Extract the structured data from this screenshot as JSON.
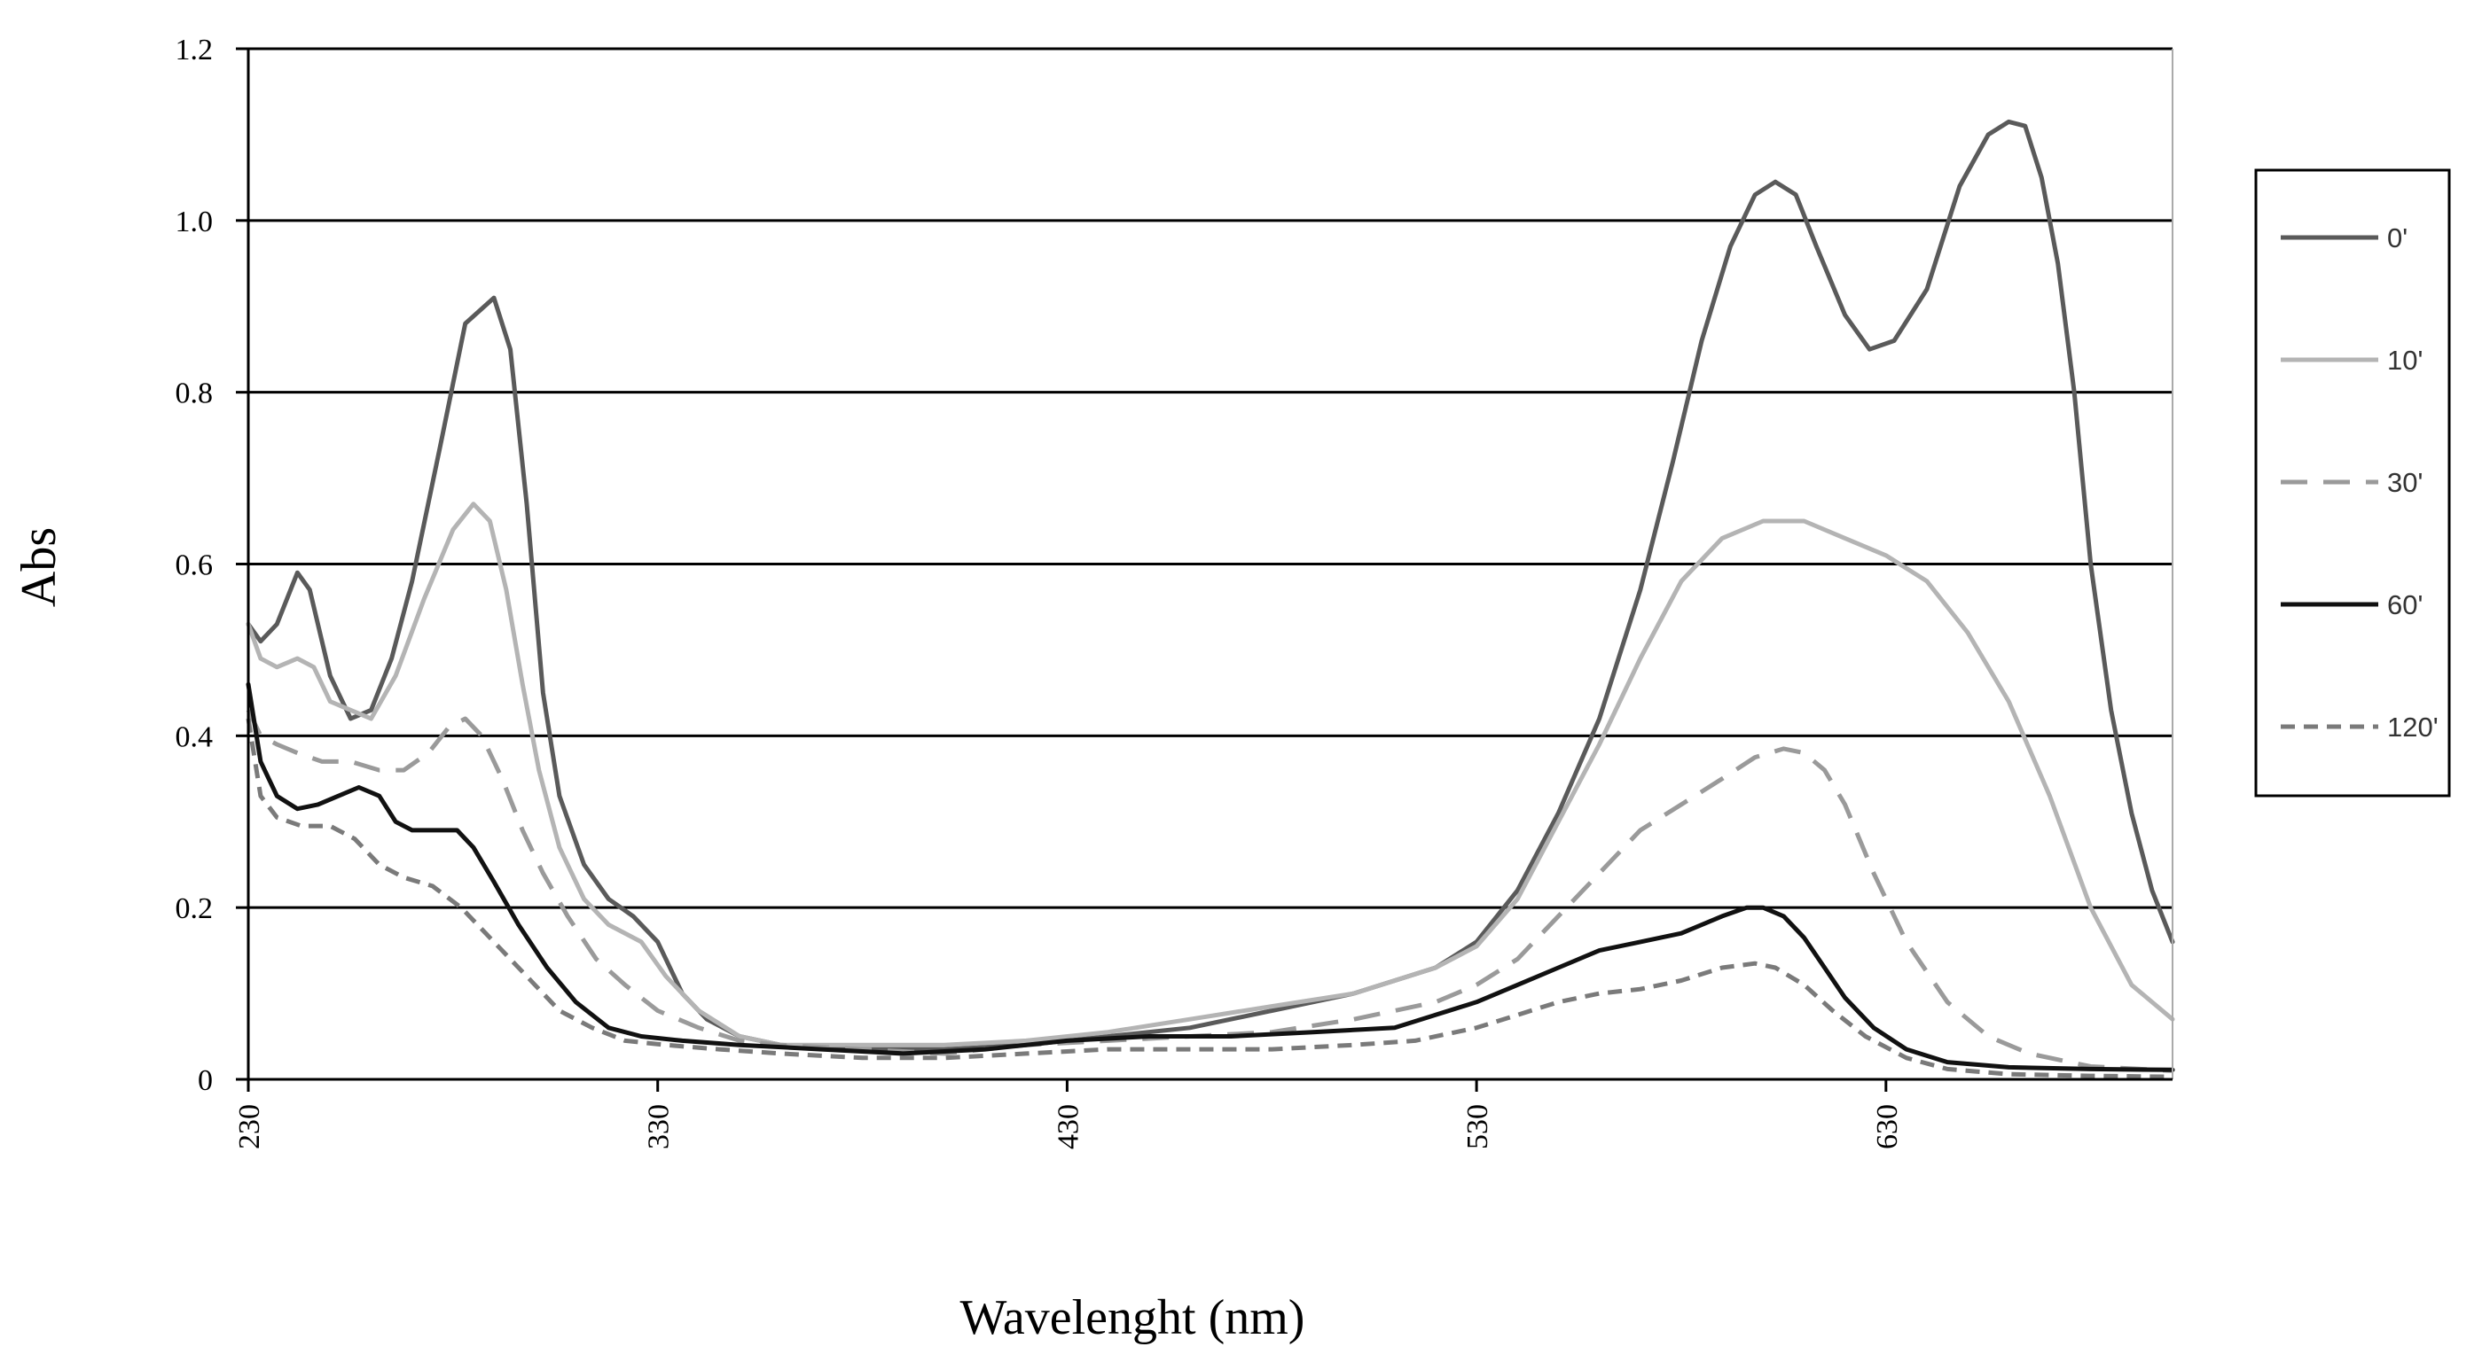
{
  "chart_data": {
    "type": "line",
    "title": "",
    "xlabel": "Wavelenght (nm)",
    "ylabel": "Abs",
    "xlim": [
      230,
      700
    ],
    "ylim": [
      0,
      1.2
    ],
    "x_ticks": [
      230,
      330,
      430,
      530,
      630
    ],
    "x_tick_labels": [
      "230",
      "330",
      "430",
      "530",
      "630"
    ],
    "y_ticks": [
      0,
      0.2,
      0.4,
      0.6,
      0.8,
      1.0,
      1.2
    ],
    "y_tick_labels": [
      "0",
      "0.2",
      "0.4",
      "0.6",
      "0.8",
      "1.0",
      "1.2"
    ],
    "grid": "horizontal",
    "legend_position": "right",
    "series": [
      {
        "name": "0'",
        "color": "#5a5a5a",
        "dash": "solid",
        "points": [
          [
            230,
            0.53
          ],
          [
            233,
            0.51
          ],
          [
            237,
            0.53
          ],
          [
            242,
            0.59
          ],
          [
            245,
            0.57
          ],
          [
            250,
            0.47
          ],
          [
            255,
            0.42
          ],
          [
            260,
            0.43
          ],
          [
            265,
            0.49
          ],
          [
            270,
            0.58
          ],
          [
            277,
            0.74
          ],
          [
            283,
            0.88
          ],
          [
            290,
            0.91
          ],
          [
            294,
            0.85
          ],
          [
            298,
            0.67
          ],
          [
            302,
            0.45
          ],
          [
            306,
            0.33
          ],
          [
            312,
            0.25
          ],
          [
            318,
            0.21
          ],
          [
            324,
            0.19
          ],
          [
            330,
            0.16
          ],
          [
            336,
            0.1
          ],
          [
            342,
            0.07
          ],
          [
            350,
            0.05
          ],
          [
            360,
            0.04
          ],
          [
            380,
            0.035
          ],
          [
            400,
            0.035
          ],
          [
            420,
            0.04
          ],
          [
            440,
            0.05
          ],
          [
            460,
            0.06
          ],
          [
            480,
            0.08
          ],
          [
            500,
            0.1
          ],
          [
            520,
            0.13
          ],
          [
            530,
            0.16
          ],
          [
            540,
            0.22
          ],
          [
            550,
            0.31
          ],
          [
            560,
            0.42
          ],
          [
            570,
            0.57
          ],
          [
            578,
            0.72
          ],
          [
            585,
            0.86
          ],
          [
            592,
            0.97
          ],
          [
            598,
            1.03
          ],
          [
            603,
            1.045
          ],
          [
            608,
            1.03
          ],
          [
            613,
            0.97
          ],
          [
            620,
            0.89
          ],
          [
            626,
            0.85
          ],
          [
            632,
            0.86
          ],
          [
            640,
            0.92
          ],
          [
            648,
            1.04
          ],
          [
            655,
            1.1
          ],
          [
            660,
            1.115
          ],
          [
            664,
            1.11
          ],
          [
            668,
            1.05
          ],
          [
            672,
            0.95
          ],
          [
            676,
            0.8
          ],
          [
            680,
            0.6
          ],
          [
            685,
            0.43
          ],
          [
            690,
            0.31
          ],
          [
            695,
            0.22
          ],
          [
            700,
            0.16
          ]
        ]
      },
      {
        "name": "10'",
        "color": "#b4b4b4",
        "dash": "solid",
        "points": [
          [
            230,
            0.53
          ],
          [
            233,
            0.49
          ],
          [
            237,
            0.48
          ],
          [
            242,
            0.49
          ],
          [
            246,
            0.48
          ],
          [
            250,
            0.44
          ],
          [
            255,
            0.43
          ],
          [
            260,
            0.42
          ],
          [
            266,
            0.47
          ],
          [
            273,
            0.56
          ],
          [
            280,
            0.64
          ],
          [
            285,
            0.67
          ],
          [
            289,
            0.65
          ],
          [
            293,
            0.57
          ],
          [
            297,
            0.46
          ],
          [
            301,
            0.36
          ],
          [
            306,
            0.27
          ],
          [
            312,
            0.21
          ],
          [
            318,
            0.18
          ],
          [
            326,
            0.16
          ],
          [
            332,
            0.12
          ],
          [
            340,
            0.08
          ],
          [
            350,
            0.05
          ],
          [
            360,
            0.04
          ],
          [
            380,
            0.04
          ],
          [
            400,
            0.04
          ],
          [
            420,
            0.045
          ],
          [
            440,
            0.055
          ],
          [
            460,
            0.07
          ],
          [
            480,
            0.085
          ],
          [
            500,
            0.1
          ],
          [
            520,
            0.13
          ],
          [
            530,
            0.155
          ],
          [
            540,
            0.21
          ],
          [
            550,
            0.3
          ],
          [
            560,
            0.39
          ],
          [
            570,
            0.49
          ],
          [
            580,
            0.58
          ],
          [
            590,
            0.63
          ],
          [
            600,
            0.65
          ],
          [
            610,
            0.65
          ],
          [
            620,
            0.63
          ],
          [
            630,
            0.61
          ],
          [
            640,
            0.58
          ],
          [
            650,
            0.52
          ],
          [
            660,
            0.44
          ],
          [
            670,
            0.33
          ],
          [
            680,
            0.2
          ],
          [
            690,
            0.11
          ],
          [
            700,
            0.07
          ]
        ]
      },
      {
        "name": "30'",
        "color": "#9a9a9a",
        "dash": "long",
        "points": [
          [
            230,
            0.43
          ],
          [
            233,
            0.4
          ],
          [
            237,
            0.39
          ],
          [
            242,
            0.38
          ],
          [
            248,
            0.37
          ],
          [
            255,
            0.37
          ],
          [
            262,
            0.36
          ],
          [
            268,
            0.36
          ],
          [
            274,
            0.38
          ],
          [
            279,
            0.41
          ],
          [
            283,
            0.42
          ],
          [
            287,
            0.4
          ],
          [
            292,
            0.35
          ],
          [
            297,
            0.29
          ],
          [
            302,
            0.24
          ],
          [
            308,
            0.19
          ],
          [
            315,
            0.14
          ],
          [
            322,
            0.11
          ],
          [
            330,
            0.08
          ],
          [
            340,
            0.06
          ],
          [
            350,
            0.045
          ],
          [
            360,
            0.04
          ],
          [
            380,
            0.035
          ],
          [
            400,
            0.03
          ],
          [
            420,
            0.04
          ],
          [
            440,
            0.045
          ],
          [
            460,
            0.05
          ],
          [
            480,
            0.055
          ],
          [
            500,
            0.07
          ],
          [
            520,
            0.09
          ],
          [
            530,
            0.11
          ],
          [
            540,
            0.14
          ],
          [
            550,
            0.19
          ],
          [
            560,
            0.24
          ],
          [
            570,
            0.29
          ],
          [
            580,
            0.32
          ],
          [
            590,
            0.35
          ],
          [
            598,
            0.375
          ],
          [
            605,
            0.385
          ],
          [
            610,
            0.38
          ],
          [
            615,
            0.36
          ],
          [
            620,
            0.32
          ],
          [
            627,
            0.24
          ],
          [
            635,
            0.16
          ],
          [
            645,
            0.09
          ],
          [
            655,
            0.05
          ],
          [
            665,
            0.03
          ],
          [
            680,
            0.015
          ],
          [
            700,
            0.01
          ]
        ]
      },
      {
        "name": "60'",
        "color": "#111111",
        "dash": "solid",
        "points": [
          [
            230,
            0.46
          ],
          [
            233,
            0.37
          ],
          [
            237,
            0.33
          ],
          [
            242,
            0.315
          ],
          [
            247,
            0.32
          ],
          [
            252,
            0.33
          ],
          [
            257,
            0.34
          ],
          [
            262,
            0.33
          ],
          [
            266,
            0.3
          ],
          [
            270,
            0.29
          ],
          [
            275,
            0.29
          ],
          [
            281,
            0.29
          ],
          [
            285,
            0.27
          ],
          [
            290,
            0.23
          ],
          [
            296,
            0.18
          ],
          [
            303,
            0.13
          ],
          [
            310,
            0.09
          ],
          [
            318,
            0.06
          ],
          [
            326,
            0.05
          ],
          [
            336,
            0.045
          ],
          [
            350,
            0.04
          ],
          [
            370,
            0.035
          ],
          [
            390,
            0.03
          ],
          [
            410,
            0.035
          ],
          [
            430,
            0.045
          ],
          [
            450,
            0.05
          ],
          [
            470,
            0.05
          ],
          [
            490,
            0.055
          ],
          [
            510,
            0.06
          ],
          [
            520,
            0.075
          ],
          [
            530,
            0.09
          ],
          [
            540,
            0.11
          ],
          [
            550,
            0.13
          ],
          [
            560,
            0.15
          ],
          [
            570,
            0.16
          ],
          [
            580,
            0.17
          ],
          [
            590,
            0.19
          ],
          [
            596,
            0.2
          ],
          [
            600,
            0.2
          ],
          [
            605,
            0.19
          ],
          [
            610,
            0.165
          ],
          [
            615,
            0.13
          ],
          [
            620,
            0.095
          ],
          [
            627,
            0.06
          ],
          [
            635,
            0.035
          ],
          [
            645,
            0.02
          ],
          [
            660,
            0.014
          ],
          [
            680,
            0.012
          ],
          [
            700,
            0.011
          ]
        ]
      },
      {
        "name": "120'",
        "color": "#7a7a7a",
        "dash": "short",
        "points": [
          [
            230,
            0.42
          ],
          [
            233,
            0.33
          ],
          [
            237,
            0.305
          ],
          [
            243,
            0.295
          ],
          [
            250,
            0.295
          ],
          [
            256,
            0.28
          ],
          [
            262,
            0.25
          ],
          [
            268,
            0.235
          ],
          [
            275,
            0.225
          ],
          [
            282,
            0.2
          ],
          [
            290,
            0.16
          ],
          [
            298,
            0.12
          ],
          [
            306,
            0.08
          ],
          [
            314,
            0.06
          ],
          [
            322,
            0.045
          ],
          [
            332,
            0.04
          ],
          [
            345,
            0.035
          ],
          [
            360,
            0.03
          ],
          [
            380,
            0.025
          ],
          [
            400,
            0.025
          ],
          [
            420,
            0.03
          ],
          [
            440,
            0.035
          ],
          [
            460,
            0.035
          ],
          [
            480,
            0.035
          ],
          [
            500,
            0.04
          ],
          [
            515,
            0.045
          ],
          [
            530,
            0.06
          ],
          [
            540,
            0.075
          ],
          [
            550,
            0.09
          ],
          [
            560,
            0.1
          ],
          [
            570,
            0.105
          ],
          [
            580,
            0.115
          ],
          [
            590,
            0.13
          ],
          [
            598,
            0.135
          ],
          [
            603,
            0.13
          ],
          [
            610,
            0.11
          ],
          [
            617,
            0.08
          ],
          [
            625,
            0.05
          ],
          [
            635,
            0.025
          ],
          [
            645,
            0.012
          ],
          [
            660,
            0.006
          ],
          [
            680,
            0.004
          ],
          [
            700,
            0.003
          ]
        ]
      }
    ]
  }
}
